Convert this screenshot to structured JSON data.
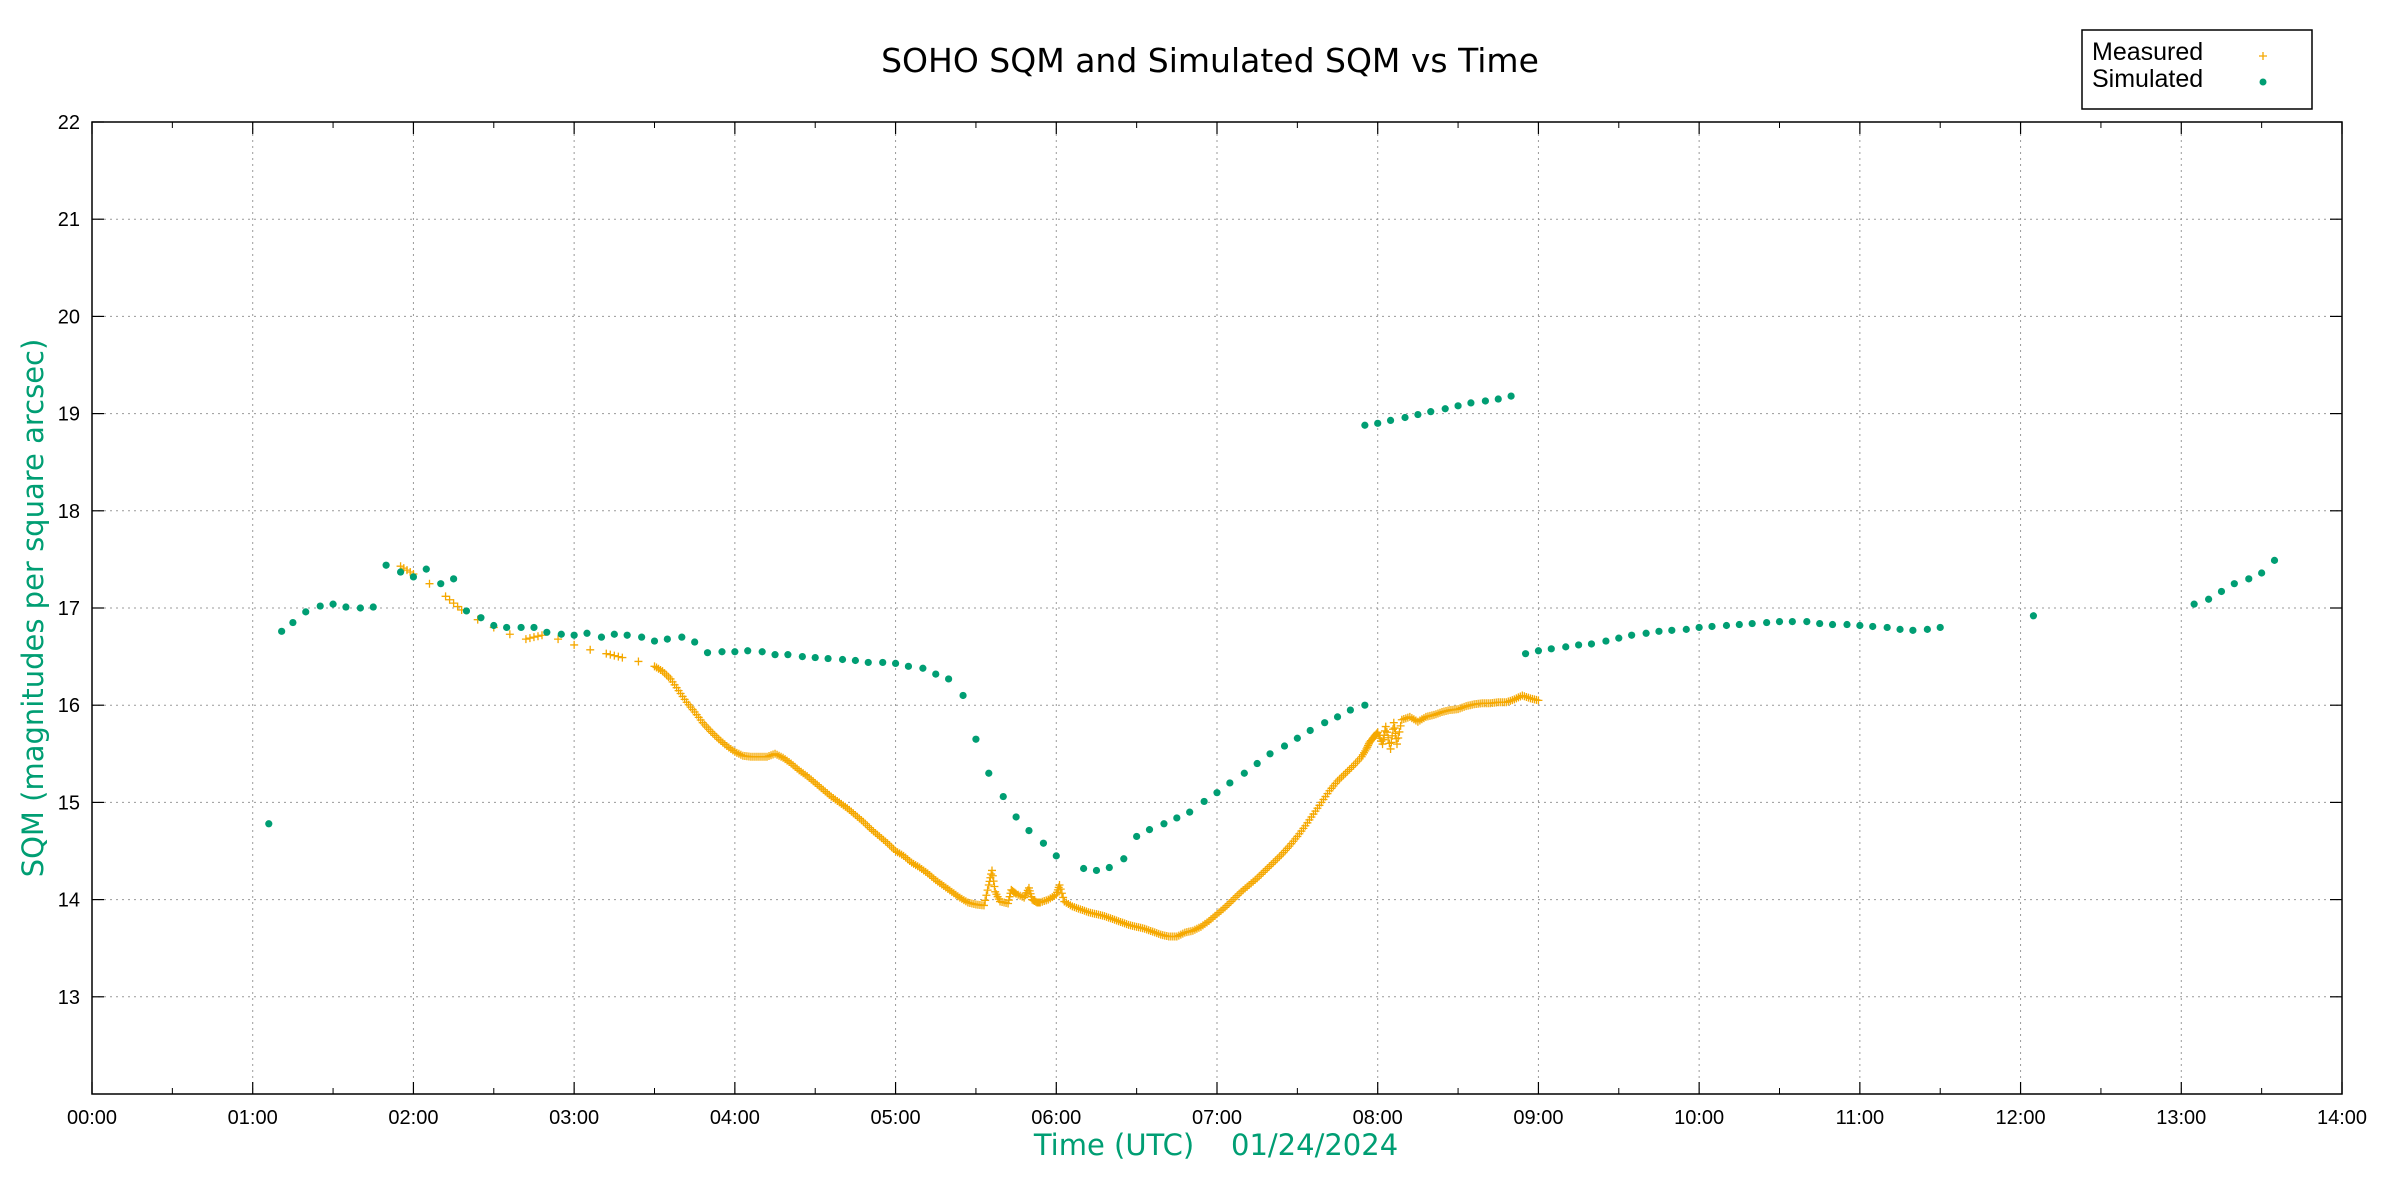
{
  "chart_data": {
    "type": "scatter",
    "title": "SOHO SQM and Simulated SQM vs Time",
    "xlabel": "Time (UTC)    01/24/2024",
    "ylabel": "SQM (magnitudes per square arcsec)",
    "xlim": [
      0,
      14
    ],
    "ylim": [
      12,
      22
    ],
    "x_unit": "hours UTC",
    "x_ticks": [
      "00:00",
      "01:00",
      "02:00",
      "03:00",
      "04:00",
      "05:00",
      "06:00",
      "07:00",
      "08:00",
      "09:00",
      "10:00",
      "11:00",
      "12:00",
      "13:00",
      "14:00"
    ],
    "y_ticks": [
      "13",
      "14",
      "15",
      "16",
      "17",
      "18",
      "19",
      "20",
      "21",
      "22"
    ],
    "grid": true,
    "legend_position": "top-right",
    "colors": {
      "measured": "#f5a800",
      "simulated": "#009e73"
    },
    "series": [
      {
        "name": "Measured",
        "marker": "plus",
        "color": "#f5a800",
        "points": [
          [
            1.92,
            17.43
          ],
          [
            2.0,
            17.35
          ],
          [
            2.1,
            17.25
          ],
          [
            2.2,
            17.12
          ],
          [
            2.3,
            16.98
          ],
          [
            2.4,
            16.88
          ],
          [
            2.5,
            16.8
          ],
          [
            2.6,
            16.73
          ],
          [
            2.7,
            16.68
          ],
          [
            2.8,
            16.72
          ],
          [
            2.9,
            16.68
          ],
          [
            3.0,
            16.62
          ],
          [
            3.1,
            16.57
          ],
          [
            3.2,
            16.53
          ],
          [
            3.3,
            16.49
          ],
          [
            3.4,
            16.45
          ],
          [
            3.5,
            16.4
          ],
          [
            3.55,
            16.35
          ],
          [
            3.6,
            16.27
          ],
          [
            3.65,
            16.15
          ],
          [
            3.7,
            16.03
          ],
          [
            3.75,
            15.93
          ],
          [
            3.8,
            15.82
          ],
          [
            3.85,
            15.73
          ],
          [
            3.9,
            15.65
          ],
          [
            3.95,
            15.58
          ],
          [
            4.0,
            15.52
          ],
          [
            4.05,
            15.48
          ],
          [
            4.1,
            15.47
          ],
          [
            4.15,
            15.47
          ],
          [
            4.2,
            15.47
          ],
          [
            4.25,
            15.5
          ],
          [
            4.3,
            15.46
          ],
          [
            4.35,
            15.4
          ],
          [
            4.4,
            15.33
          ],
          [
            4.45,
            15.27
          ],
          [
            4.5,
            15.2
          ],
          [
            4.55,
            15.13
          ],
          [
            4.6,
            15.06
          ],
          [
            4.65,
            15.0
          ],
          [
            4.7,
            14.94
          ],
          [
            4.75,
            14.87
          ],
          [
            4.8,
            14.8
          ],
          [
            4.85,
            14.72
          ],
          [
            4.9,
            14.65
          ],
          [
            4.95,
            14.58
          ],
          [
            5.0,
            14.5
          ],
          [
            5.05,
            14.45
          ],
          [
            5.1,
            14.38
          ],
          [
            5.15,
            14.33
          ],
          [
            5.2,
            14.27
          ],
          [
            5.25,
            14.2
          ],
          [
            5.3,
            14.14
          ],
          [
            5.35,
            14.08
          ],
          [
            5.4,
            14.02
          ],
          [
            5.45,
            13.97
          ],
          [
            5.5,
            13.95
          ],
          [
            5.55,
            13.94
          ],
          [
            5.58,
            14.15
          ],
          [
            5.6,
            14.3
          ],
          [
            5.62,
            14.08
          ],
          [
            5.65,
            13.98
          ],
          [
            5.7,
            13.96
          ],
          [
            5.72,
            14.1
          ],
          [
            5.75,
            14.06
          ],
          [
            5.8,
            14.02
          ],
          [
            5.83,
            14.12
          ],
          [
            5.85,
            14.0
          ],
          [
            5.88,
            13.97
          ],
          [
            5.9,
            13.97
          ],
          [
            5.95,
            14.0
          ],
          [
            6.0,
            14.05
          ],
          [
            6.02,
            14.15
          ],
          [
            6.05,
            13.98
          ],
          [
            6.1,
            13.93
          ],
          [
            6.15,
            13.9
          ],
          [
            6.2,
            13.87
          ],
          [
            6.25,
            13.85
          ],
          [
            6.3,
            13.83
          ],
          [
            6.35,
            13.8
          ],
          [
            6.4,
            13.77
          ],
          [
            6.45,
            13.74
          ],
          [
            6.5,
            13.72
          ],
          [
            6.55,
            13.7
          ],
          [
            6.6,
            13.67
          ],
          [
            6.65,
            13.64
          ],
          [
            6.7,
            13.62
          ],
          [
            6.75,
            13.62
          ],
          [
            6.8,
            13.66
          ],
          [
            6.85,
            13.68
          ],
          [
            6.9,
            13.72
          ],
          [
            6.95,
            13.78
          ],
          [
            7.0,
            13.85
          ],
          [
            7.05,
            13.92
          ],
          [
            7.1,
            14.0
          ],
          [
            7.15,
            14.08
          ],
          [
            7.2,
            14.15
          ],
          [
            7.25,
            14.22
          ],
          [
            7.3,
            14.3
          ],
          [
            7.35,
            14.38
          ],
          [
            7.4,
            14.46
          ],
          [
            7.45,
            14.55
          ],
          [
            7.5,
            14.65
          ],
          [
            7.55,
            14.76
          ],
          [
            7.6,
            14.88
          ],
          [
            7.65,
            15.0
          ],
          [
            7.7,
            15.12
          ],
          [
            7.75,
            15.22
          ],
          [
            7.8,
            15.3
          ],
          [
            7.85,
            15.38
          ],
          [
            7.9,
            15.47
          ],
          [
            7.93,
            15.55
          ],
          [
            7.95,
            15.62
          ],
          [
            7.98,
            15.68
          ],
          [
            8.0,
            15.72
          ],
          [
            8.03,
            15.6
          ],
          [
            8.05,
            15.78
          ],
          [
            8.08,
            15.55
          ],
          [
            8.1,
            15.82
          ],
          [
            8.12,
            15.6
          ],
          [
            8.15,
            15.85
          ],
          [
            8.2,
            15.88
          ],
          [
            8.25,
            15.83
          ],
          [
            8.3,
            15.88
          ],
          [
            8.35,
            15.9
          ],
          [
            8.4,
            15.93
          ],
          [
            8.45,
            15.95
          ],
          [
            8.5,
            15.96
          ],
          [
            8.55,
            15.99
          ],
          [
            8.6,
            16.01
          ],
          [
            8.65,
            16.02
          ],
          [
            8.7,
            16.02
          ],
          [
            8.75,
            16.03
          ],
          [
            8.8,
            16.03
          ],
          [
            8.85,
            16.06
          ],
          [
            8.9,
            16.1
          ],
          [
            8.95,
            16.07
          ],
          [
            9.0,
            16.05
          ]
        ]
      },
      {
        "name": "Simulated",
        "marker": "dot",
        "color": "#009e73",
        "points": [
          [
            1.1,
            14.78
          ],
          [
            1.18,
            16.76
          ],
          [
            1.25,
            16.85
          ],
          [
            1.33,
            16.96
          ],
          [
            1.42,
            17.02
          ],
          [
            1.5,
            17.04
          ],
          [
            1.58,
            17.01
          ],
          [
            1.67,
            17.0
          ],
          [
            1.75,
            17.01
          ],
          [
            1.83,
            17.44
          ],
          [
            1.92,
            17.37
          ],
          [
            2.0,
            17.32
          ],
          [
            2.08,
            17.4
          ],
          [
            2.17,
            17.25
          ],
          [
            2.25,
            17.3
          ],
          [
            2.33,
            16.97
          ],
          [
            2.42,
            16.9
          ],
          [
            2.5,
            16.82
          ],
          [
            2.58,
            16.8
          ],
          [
            2.67,
            16.8
          ],
          [
            2.75,
            16.8
          ],
          [
            2.83,
            16.75
          ],
          [
            2.92,
            16.73
          ],
          [
            3.0,
            16.72
          ],
          [
            3.08,
            16.74
          ],
          [
            3.17,
            16.7
          ],
          [
            3.25,
            16.73
          ],
          [
            3.33,
            16.72
          ],
          [
            3.42,
            16.7
          ],
          [
            3.5,
            16.66
          ],
          [
            3.58,
            16.68
          ],
          [
            3.67,
            16.7
          ],
          [
            3.75,
            16.65
          ],
          [
            3.83,
            16.54
          ],
          [
            3.92,
            16.55
          ],
          [
            4.0,
            16.55
          ],
          [
            4.08,
            16.56
          ],
          [
            4.17,
            16.55
          ],
          [
            4.25,
            16.52
          ],
          [
            4.33,
            16.52
          ],
          [
            4.42,
            16.5
          ],
          [
            4.5,
            16.49
          ],
          [
            4.58,
            16.48
          ],
          [
            4.67,
            16.47
          ],
          [
            4.75,
            16.46
          ],
          [
            4.83,
            16.44
          ],
          [
            4.92,
            16.44
          ],
          [
            5.0,
            16.43
          ],
          [
            5.08,
            16.4
          ],
          [
            5.17,
            16.38
          ],
          [
            5.25,
            16.32
          ],
          [
            5.33,
            16.27
          ],
          [
            5.42,
            16.1
          ],
          [
            5.5,
            15.65
          ],
          [
            5.58,
            15.3
          ],
          [
            5.67,
            15.06
          ],
          [
            5.75,
            14.85
          ],
          [
            5.83,
            14.71
          ],
          [
            5.92,
            14.58
          ],
          [
            6.0,
            14.45
          ],
          [
            6.17,
            14.32
          ],
          [
            6.25,
            14.3
          ],
          [
            6.33,
            14.33
          ],
          [
            6.42,
            14.42
          ],
          [
            6.5,
            14.65
          ],
          [
            6.58,
            14.72
          ],
          [
            6.67,
            14.78
          ],
          [
            6.75,
            14.84
          ],
          [
            6.83,
            14.9
          ],
          [
            6.92,
            15.01
          ],
          [
            7.0,
            15.1
          ],
          [
            7.08,
            15.2
          ],
          [
            7.17,
            15.3
          ],
          [
            7.25,
            15.4
          ],
          [
            7.33,
            15.5
          ],
          [
            7.42,
            15.58
          ],
          [
            7.5,
            15.66
          ],
          [
            7.58,
            15.74
          ],
          [
            7.67,
            15.82
          ],
          [
            7.75,
            15.88
          ],
          [
            7.83,
            15.95
          ],
          [
            7.92,
            16.0
          ],
          [
            7.92,
            18.88
          ],
          [
            8.0,
            18.9
          ],
          [
            8.08,
            18.93
          ],
          [
            8.17,
            18.96
          ],
          [
            8.25,
            18.99
          ],
          [
            8.33,
            19.02
          ],
          [
            8.42,
            19.05
          ],
          [
            8.5,
            19.08
          ],
          [
            8.58,
            19.11
          ],
          [
            8.67,
            19.13
          ],
          [
            8.75,
            19.15
          ],
          [
            8.83,
            19.18
          ],
          [
            8.92,
            16.53
          ],
          [
            9.0,
            16.56
          ],
          [
            9.08,
            16.58
          ],
          [
            9.17,
            16.6
          ],
          [
            9.25,
            16.62
          ],
          [
            9.33,
            16.63
          ],
          [
            9.42,
            16.66
          ],
          [
            9.5,
            16.69
          ],
          [
            9.58,
            16.72
          ],
          [
            9.67,
            16.74
          ],
          [
            9.75,
            16.76
          ],
          [
            9.83,
            16.77
          ],
          [
            9.92,
            16.78
          ],
          [
            10.0,
            16.8
          ],
          [
            10.08,
            16.81
          ],
          [
            10.17,
            16.82
          ],
          [
            10.25,
            16.83
          ],
          [
            10.33,
            16.84
          ],
          [
            10.42,
            16.85
          ],
          [
            10.5,
            16.86
          ],
          [
            10.58,
            16.86
          ],
          [
            10.67,
            16.86
          ],
          [
            10.75,
            16.84
          ],
          [
            10.83,
            16.83
          ],
          [
            10.92,
            16.83
          ],
          [
            11.0,
            16.82
          ],
          [
            11.08,
            16.81
          ],
          [
            11.17,
            16.8
          ],
          [
            11.25,
            16.78
          ],
          [
            11.33,
            16.77
          ],
          [
            11.42,
            16.78
          ],
          [
            11.5,
            16.8
          ],
          [
            12.08,
            16.92
          ],
          [
            13.08,
            17.04
          ],
          [
            13.17,
            17.09
          ],
          [
            13.25,
            17.17
          ],
          [
            13.33,
            17.25
          ],
          [
            13.42,
            17.3
          ],
          [
            13.5,
            17.36
          ],
          [
            13.58,
            17.49
          ]
        ]
      }
    ]
  }
}
